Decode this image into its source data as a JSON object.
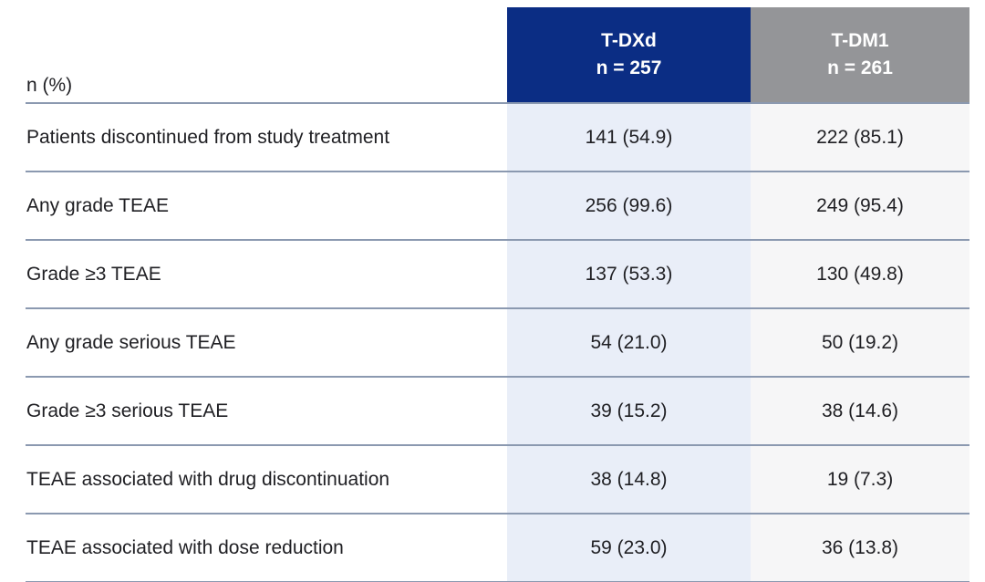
{
  "colors": {
    "tdxd_header_bg": "#0b2d84",
    "tdm1_header_bg": "#949598",
    "tdxd_body_bg": "#e9eef8",
    "tdm1_body_bg": "#f6f6f7",
    "separator_line": "#8b99b0",
    "header_text": "#ffffff",
    "body_text": "#1f1f23"
  },
  "table": {
    "corner_label": "n (%)",
    "columns": [
      {
        "label": "T-DXd",
        "n_label": "n = 257"
      },
      {
        "label": "T-DM1",
        "n_label": "n = 261"
      }
    ],
    "rows": [
      {
        "label": "Patients discontinued from study treatment",
        "values": [
          "141 (54.9)",
          "222 (85.1)"
        ]
      },
      {
        "label": "Any grade TEAE",
        "values": [
          "256 (99.6)",
          "249 (95.4)"
        ]
      },
      {
        "label": "Grade ≥3 TEAE",
        "values": [
          "137 (53.3)",
          "130 (49.8)"
        ]
      },
      {
        "label": "Any grade serious TEAE",
        "values": [
          "54 (21.0)",
          "50 (19.2)"
        ]
      },
      {
        "label": "Grade ≥3 serious TEAE",
        "values": [
          "39 (15.2)",
          "38 (14.6)"
        ]
      },
      {
        "label": "TEAE associated with drug discontinuation",
        "values": [
          "38 (14.8)",
          "19 (7.3)"
        ]
      },
      {
        "label": "TEAE associated with dose reduction",
        "values": [
          "59 (23.0)",
          "36 (13.8)"
        ]
      }
    ]
  },
  "chart_data": {
    "type": "table",
    "title": "",
    "unit_note": "n (%)",
    "columns": [
      "T-DXd (n = 257)",
      "T-DM1 (n = 261)"
    ],
    "rows": [
      {
        "label": "Patients discontinued from study treatment",
        "tdxd_n": 141,
        "tdxd_pct": 54.9,
        "tdm1_n": 222,
        "tdm1_pct": 85.1
      },
      {
        "label": "Any grade TEAE",
        "tdxd_n": 256,
        "tdxd_pct": 99.6,
        "tdm1_n": 249,
        "tdm1_pct": 95.4
      },
      {
        "label": "Grade ≥3 TEAE",
        "tdxd_n": 137,
        "tdxd_pct": 53.3,
        "tdm1_n": 130,
        "tdm1_pct": 49.8
      },
      {
        "label": "Any grade serious TEAE",
        "tdxd_n": 54,
        "tdxd_pct": 21.0,
        "tdm1_n": 50,
        "tdm1_pct": 19.2
      },
      {
        "label": "Grade ≥3 serious TEAE",
        "tdxd_n": 39,
        "tdxd_pct": 15.2,
        "tdm1_n": 38,
        "tdm1_pct": 14.6
      },
      {
        "label": "TEAE associated with drug discontinuation",
        "tdxd_n": 38,
        "tdxd_pct": 14.8,
        "tdm1_n": 19,
        "tdm1_pct": 7.3
      },
      {
        "label": "TEAE associated with dose reduction",
        "tdxd_n": 59,
        "tdxd_pct": 23.0,
        "tdm1_n": 36,
        "tdm1_pct": 13.8
      }
    ]
  }
}
